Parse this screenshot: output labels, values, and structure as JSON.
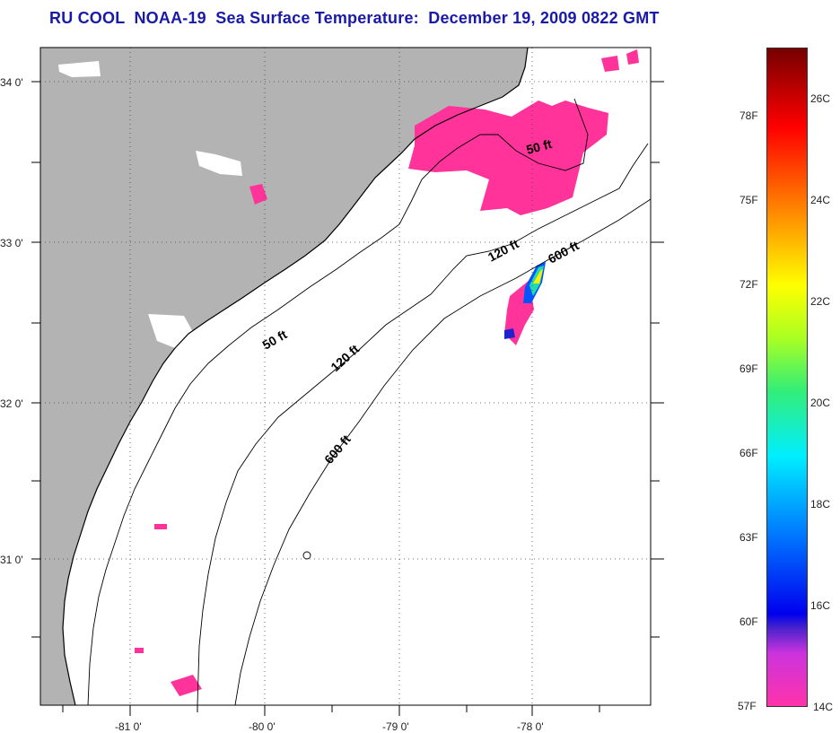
{
  "title": "RU COOL  NOAA-19  Sea Surface Temperature:  December 19, 2009 0822 GMT",
  "lat_labels": [
    "34 0'",
    "33 0'",
    "32 0'",
    "31 0'"
  ],
  "lon_labels": [
    "-81 0'",
    "-80 0'",
    "-79 0'",
    "-78 0'"
  ],
  "depth_labels": [
    "50 ft",
    "120 ft",
    "600 ft",
    "50 ft",
    "120 ft",
    "600 ft"
  ],
  "colorbar": {
    "fahrenheit": [
      "78F",
      "75F",
      "72F",
      "69F",
      "66F",
      "63F",
      "60F",
      "57F"
    ],
    "celsius": [
      "26C",
      "24C",
      "22C",
      "20C",
      "18C",
      "16C",
      "14C"
    ]
  },
  "colors": {
    "land": "#b3b3b3",
    "sst_patch": "#ff3399",
    "title": "#1a1aa8"
  }
}
